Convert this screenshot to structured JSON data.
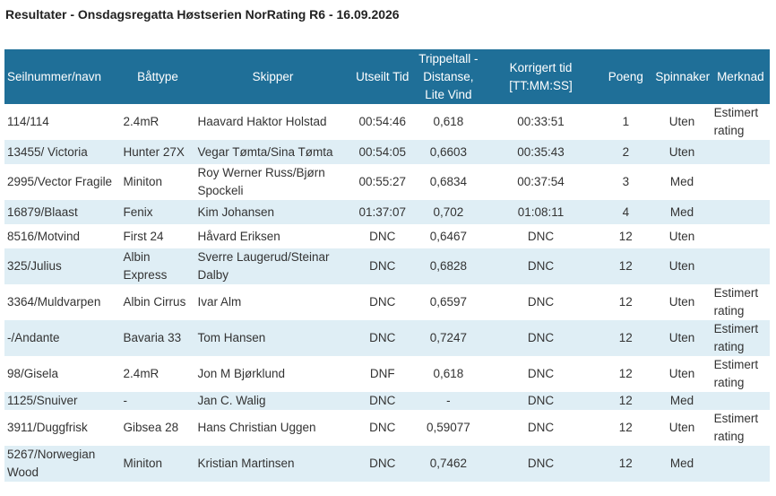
{
  "title": "Resultater - Onsdagsregatta Høstserien NorRating R6 - 16.09.2026",
  "table": {
    "headers": {
      "sail": "Seilnummer/navn",
      "boat_type": "Båttype",
      "skipper": "Skipper",
      "elapsed": "Utseilt Tid",
      "tt_line1": "Trippeltall -",
      "tt_line2": "Distanse,",
      "tt_line3": "Lite Vind",
      "corrected_line1": "Korrigert tid",
      "corrected_line2": "[TT:MM:SS]",
      "points": "Poeng",
      "spinnaker": "Spinnaker",
      "remark": "Merknad"
    },
    "rows": [
      {
        "sail": "114/114",
        "boat_type": "2.4mR",
        "skipper": "Haavard Haktor Holstad",
        "elapsed": "00:54:46",
        "tt": "0,618",
        "corrected": "00:33:51",
        "points": "1",
        "spinnaker": "Uten",
        "remark": "Estimert rating"
      },
      {
        "sail": "13455/ Victoria",
        "boat_type": "Hunter 27X",
        "skipper": "Vegar Tømta/Sina Tømta",
        "elapsed": "00:54:05",
        "tt": "0,6603",
        "corrected": "00:35:43",
        "points": "2",
        "spinnaker": "Uten",
        "remark": ""
      },
      {
        "sail": "2995/Vector Fragile",
        "boat_type": "Miniton",
        "skipper": "Roy Werner Russ/Bjørn Spockeli",
        "elapsed": "00:55:27",
        "tt": "0,6834",
        "corrected": "00:37:54",
        "points": "3",
        "spinnaker": "Med",
        "remark": ""
      },
      {
        "sail": "16879/Blaast",
        "boat_type": "Fenix",
        "skipper": "Kim Johansen",
        "elapsed": "01:37:07",
        "tt": "0,702",
        "corrected": "01:08:11",
        "points": "4",
        "spinnaker": "Med",
        "remark": ""
      },
      {
        "sail": "8516/Motvind",
        "boat_type": "First 24",
        "skipper": "Håvard Eriksen",
        "elapsed": "DNC",
        "tt": "0,6467",
        "corrected": "DNC",
        "points": "12",
        "spinnaker": "Uten",
        "remark": ""
      },
      {
        "sail": "325/Julius",
        "boat_type": "Albin Express",
        "skipper": "Sverre Laugerud/Steinar Dalby",
        "elapsed": "DNC",
        "tt": "0,6828",
        "corrected": "DNC",
        "points": "12",
        "spinnaker": "Uten",
        "remark": ""
      },
      {
        "sail": "3364/Muldvarpen",
        "boat_type": "Albin Cirrus",
        "skipper": "Ivar Alm",
        "elapsed": "DNC",
        "tt": "0,6597",
        "corrected": "DNC",
        "points": "12",
        "spinnaker": "Uten",
        "remark": "Estimert rating"
      },
      {
        "sail": "-/Andante",
        "boat_type": "Bavaria 33",
        "skipper": "Tom Hansen",
        "elapsed": "DNC",
        "tt": "0,7247",
        "corrected": "DNC",
        "points": "12",
        "spinnaker": "Uten",
        "remark": "Estimert rating"
      },
      {
        "sail": "98/Gisela",
        "boat_type": "2.4mR",
        "skipper": "Jon M Bjørklund",
        "elapsed": "DNF",
        "tt": "0,618",
        "corrected": "DNC",
        "points": "12",
        "spinnaker": "Uten",
        "remark": "Estimert rating"
      },
      {
        "sail": "1125/Snuiver",
        "boat_type": "-",
        "skipper": "Jan C. Walig",
        "elapsed": "DNC",
        "tt": "-",
        "corrected": "DNC",
        "points": "12",
        "spinnaker": "Med",
        "remark": ""
      },
      {
        "sail": "3911/Duggfrisk",
        "boat_type": "Gibsea 28",
        "skipper": "Hans Christian Uggen",
        "elapsed": "DNC",
        "tt": "0,59077",
        "corrected": "DNC",
        "points": "12",
        "spinnaker": "Uten",
        "remark": "Estimert rating"
      },
      {
        "sail": "5267/Norwegian Wood",
        "boat_type": "Miniton",
        "skipper": "Kristian Martinsen",
        "elapsed": "DNC",
        "tt": "0,7462",
        "corrected": "DNC",
        "points": "12",
        "spinnaker": "Med",
        "remark": ""
      }
    ]
  },
  "colors": {
    "header_bg": "#1f6f98",
    "header_text": "#ffffff",
    "stripe_bg": "#dfeef5",
    "body_text": "#333333"
  }
}
